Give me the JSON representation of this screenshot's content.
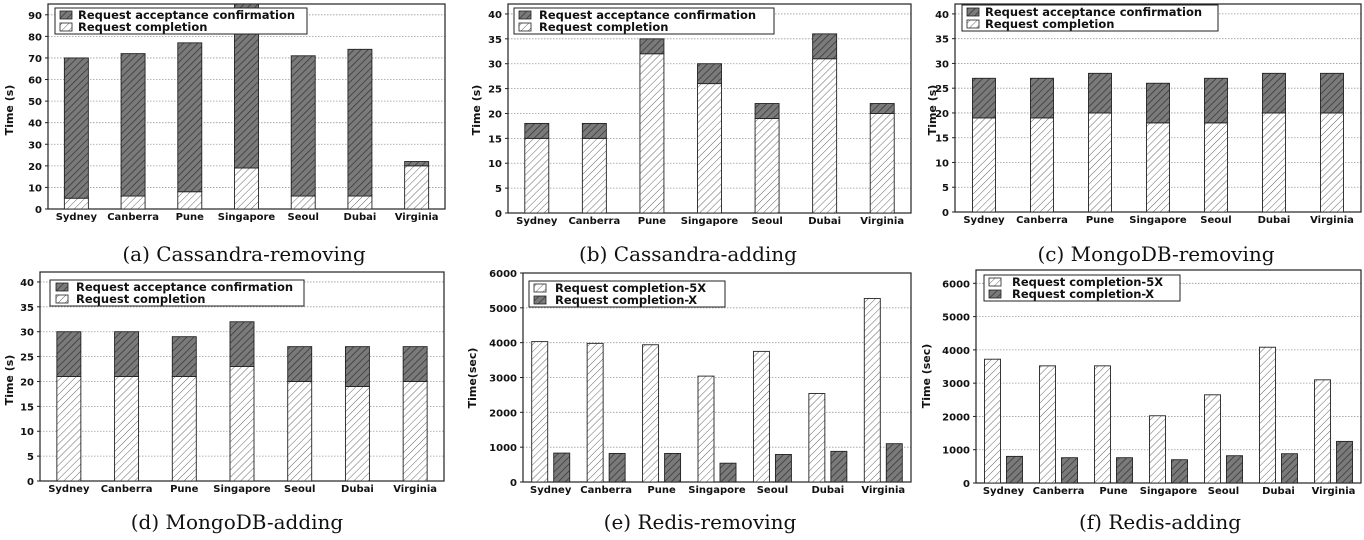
{
  "colors": {
    "dark_fill": "#7a7a7a",
    "light_fill": "#ffffff",
    "hatch_stroke": "#333333",
    "grid": "#9a9a9a"
  },
  "chart_data": [
    {
      "type": "bar",
      "subtype": "stacked",
      "caption": "(a) Cassandra-removing",
      "ylabel": "Time (s)",
      "xlabel": "",
      "ylim": [
        0,
        95
      ],
      "yticks": [
        0,
        10,
        20,
        30,
        40,
        50,
        60,
        70,
        80,
        90
      ],
      "grid": true,
      "legend_position": "top-left",
      "categories": [
        "Sydney",
        "Canberra",
        "Pune",
        "Singapore",
        "Seoul",
        "Dubai",
        "Virginia"
      ],
      "series": [
        {
          "name": "Request acceptance confirmation",
          "style": "dark-hatched",
          "values": [
            65,
            66,
            69,
            76,
            65,
            68,
            2
          ]
        },
        {
          "name": "Request completion",
          "style": "light-hatched",
          "values": [
            5,
            6,
            8,
            19,
            6,
            6,
            20
          ]
        }
      ]
    },
    {
      "type": "bar",
      "subtype": "stacked",
      "caption": "(b) Cassandra-adding",
      "ylabel": "Time (s)",
      "xlabel": "",
      "ylim": [
        0,
        42
      ],
      "yticks": [
        0,
        5,
        10,
        15,
        20,
        25,
        30,
        35,
        40
      ],
      "grid": true,
      "legend_position": "top-left",
      "categories": [
        "Sydney",
        "Canberra",
        "Pune",
        "Singapore",
        "Seoul",
        "Dubai",
        "Virginia"
      ],
      "series": [
        {
          "name": "Request acceptance confirmation",
          "style": "dark-hatched",
          "values": [
            3,
            3,
            3,
            4,
            3,
            5,
            2
          ]
        },
        {
          "name": "Request completion",
          "style": "light-hatched",
          "values": [
            15,
            15,
            32,
            26,
            19,
            31,
            20
          ]
        }
      ]
    },
    {
      "type": "bar",
      "subtype": "stacked",
      "caption": "(c) MongoDB-removing",
      "ylabel": "Time (s)",
      "xlabel": "",
      "ylim": [
        0,
        42
      ],
      "yticks": [
        0,
        5,
        10,
        15,
        20,
        25,
        30,
        35,
        40
      ],
      "grid": true,
      "legend_position": "top-left",
      "categories": [
        "Sydney",
        "Canberra",
        "Pune",
        "Singapore",
        "Seoul",
        "Dubai",
        "Virginia"
      ],
      "series": [
        {
          "name": "Request acceptance confirmation",
          "style": "dark-hatched",
          "values": [
            8,
            8,
            8,
            8,
            9,
            8,
            8
          ]
        },
        {
          "name": "Request completion",
          "style": "light-hatched",
          "values": [
            19,
            19,
            20,
            18,
            18,
            20,
            20
          ]
        }
      ]
    },
    {
      "type": "bar",
      "subtype": "stacked",
      "caption": "(d) MongoDB-adding",
      "ylabel": "Time (s)",
      "xlabel": "",
      "ylim": [
        0,
        42
      ],
      "yticks": [
        0,
        5,
        10,
        15,
        20,
        25,
        30,
        35,
        40
      ],
      "grid": true,
      "legend_position": "top-left",
      "categories": [
        "Sydney",
        "Canberra",
        "Pune",
        "Singapore",
        "Seoul",
        "Dubai",
        "Virginia"
      ],
      "series": [
        {
          "name": "Request acceptance confirmation",
          "style": "dark-hatched",
          "values": [
            9,
            9,
            8,
            9,
            7,
            8,
            7
          ]
        },
        {
          "name": "Request completion",
          "style": "light-hatched",
          "values": [
            21,
            21,
            21,
            23,
            20,
            19,
            20
          ]
        }
      ]
    },
    {
      "type": "bar",
      "subtype": "grouped",
      "caption": "(e) Redis-removing",
      "ylabel": "Time(sec)",
      "xlabel": "",
      "ylim": [
        0,
        6000
      ],
      "yticks": [
        0,
        1000,
        2000,
        3000,
        4000,
        5000,
        6000
      ],
      "grid": true,
      "legend_position": "top-left",
      "categories": [
        "Sydney",
        "Canberra",
        "Pune",
        "Singapore",
        "Seoul",
        "Dubai",
        "Virginia"
      ],
      "series": [
        {
          "name": "Request completion-5X",
          "style": "light-hatched",
          "values": [
            4030,
            3980,
            3940,
            3040,
            3750,
            2540,
            5270
          ]
        },
        {
          "name": "Request completion-X",
          "style": "dark-hatched",
          "values": [
            830,
            820,
            820,
            540,
            790,
            880,
            1100
          ]
        }
      ]
    },
    {
      "type": "bar",
      "subtype": "grouped",
      "caption": "(f) Redis-adding",
      "ylabel": "Time (sec)",
      "xlabel": "",
      "ylim": [
        0,
        6400
      ],
      "yticks": [
        0,
        1000,
        2000,
        3000,
        4000,
        5000,
        6000
      ],
      "grid": true,
      "legend_position": "top-left",
      "categories": [
        "Sydney",
        "Canberra",
        "Pune",
        "Singapore",
        "Seoul",
        "Dubai",
        "Virginia"
      ],
      "series": [
        {
          "name": "Request completion-5X",
          "style": "light-hatched",
          "values": [
            3720,
            3520,
            3520,
            2020,
            2650,
            4080,
            3100
          ]
        },
        {
          "name": "Request completion-X",
          "style": "dark-hatched",
          "values": [
            800,
            760,
            760,
            700,
            820,
            880,
            1250
          ]
        }
      ]
    }
  ]
}
